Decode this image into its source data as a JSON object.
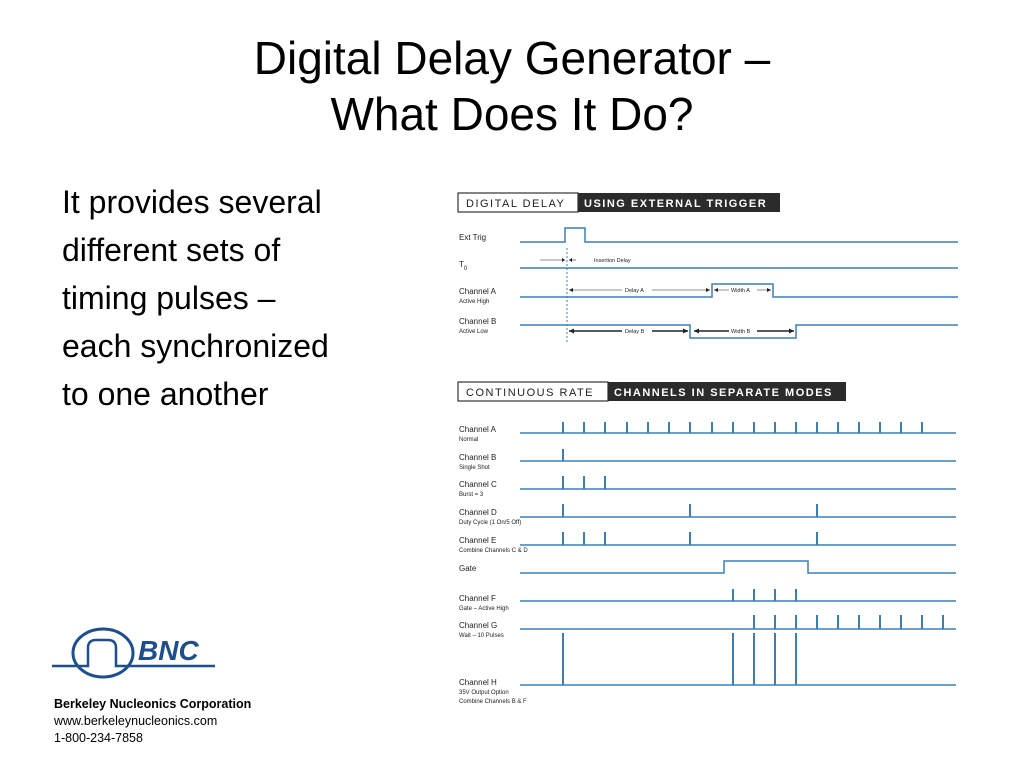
{
  "slide": {
    "title_lines": [
      "Digital Delay Generator –",
      "What Does It Do?"
    ],
    "bullet_lines": [
      "It provides several",
      "different sets of",
      "timing pulses –",
      "each synchronized",
      "to one another"
    ]
  },
  "figure1": {
    "header_left": "DIGITAL DELAY",
    "header_right": "USING EXTERNAL TRIGGER",
    "rows": [
      {
        "label": "Ext Trig",
        "sub": ""
      },
      {
        "label": "T",
        "subscript": "0",
        "sub": ""
      },
      {
        "label": "Channel A",
        "sub": "Active High"
      },
      {
        "label": "Channel B",
        "sub": "Active Low"
      }
    ],
    "annotations": {
      "insertion_delay": "Insertion Delay",
      "delay_a": "Delay A",
      "width_a": "Width A",
      "delay_b": "Delay B",
      "width_b": "Width B"
    }
  },
  "figure2": {
    "header_left": "CONTINUOUS RATE",
    "header_right": "CHANNELS IN SEPARATE MODES",
    "rows": [
      {
        "label": "Channel A",
        "sub": "Normal"
      },
      {
        "label": "Channel B",
        "sub": "Single Shot"
      },
      {
        "label": "Channel C",
        "sub": "Burst = 3"
      },
      {
        "label": "Channel D",
        "sub": "Duty Cycle (1 On/5 Off)"
      },
      {
        "label": "Channel E",
        "sub": "Combine Channels C & D"
      },
      {
        "label": "Gate",
        "sub": ""
      },
      {
        "label": "Channel F",
        "sub": "Gate – Active High"
      },
      {
        "label": "Channel G",
        "sub": "Wait – 10 Pulses"
      },
      {
        "label": "Channel H",
        "sub": "35V Output Option",
        "sub2": "Combine Channels B & F"
      }
    ]
  },
  "logo": {
    "text": "BNC"
  },
  "company": {
    "name": "Berkeley Nucleonics Corporation",
    "url": "www.berkeleynucleonics.com",
    "phone": "1-800-234-7858"
  },
  "colors": {
    "wave": "#3f7fb0",
    "header_dark": "#2b2b2b",
    "logo_blue": "#1e4f8c"
  }
}
